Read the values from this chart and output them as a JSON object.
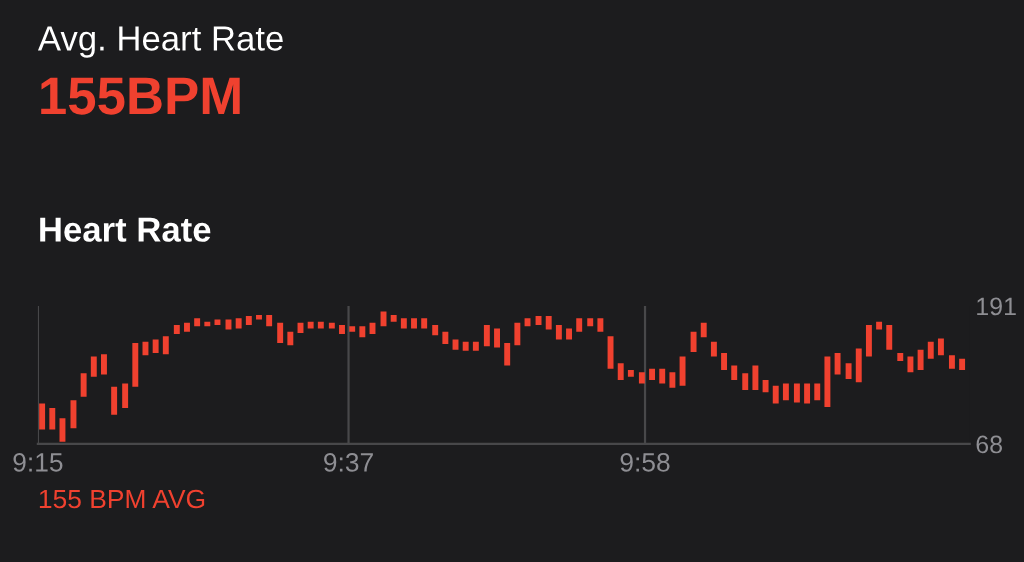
{
  "chart_data": {
    "type": "bar",
    "title": "Avg. Heart Rate",
    "subtitle": "155BPM",
    "annotations": [
      "Heart Rate",
      "155 BPM AVG"
    ],
    "x": [
      9.255,
      9.267,
      9.279,
      9.292,
      9.304,
      9.316,
      9.328,
      9.34,
      9.353,
      9.365,
      9.377,
      9.389,
      9.401,
      9.414,
      9.426,
      9.438,
      9.45,
      9.462,
      9.475,
      9.487,
      9.499,
      9.511,
      9.523,
      9.536,
      9.548,
      9.56,
      9.572,
      9.584,
      9.597,
      9.609,
      9.621,
      9.633,
      9.645,
      9.658,
      9.67,
      9.682,
      9.694,
      9.706,
      9.719,
      9.731,
      9.743,
      9.755,
      9.767,
      9.78,
      9.792,
      9.804,
      9.816,
      9.828,
      9.841,
      9.853,
      9.865,
      9.877,
      9.889,
      9.902,
      9.914,
      9.926,
      9.938,
      9.95,
      9.963,
      9.975,
      9.987,
      9.999,
      10.011,
      10.024,
      10.036,
      10.048,
      10.06,
      10.072,
      10.085,
      10.097,
      10.109,
      10.121,
      10.133,
      10.146,
      10.158,
      10.17,
      10.182,
      10.194,
      10.207,
      10.219,
      10.231,
      10.243,
      10.255,
      10.268,
      10.28,
      10.292,
      10.304,
      10.316,
      10.329,
      10.341
    ],
    "base": [
      81,
      81,
      70,
      82,
      110,
      128,
      130,
      94,
      100,
      119,
      147,
      149,
      148,
      166,
      168,
      173,
      173,
      174,
      170,
      171,
      174,
      179,
      173,
      158,
      156,
      167,
      171,
      171,
      171,
      166,
      168,
      163,
      166,
      173,
      177,
      171,
      171,
      171,
      165,
      157,
      152,
      151,
      151,
      155,
      154,
      138,
      156,
      173,
      174,
      170,
      161,
      161,
      168,
      173,
      168,
      135,
      125,
      128,
      122,
      125,
      122,
      118,
      120,
      150,
      163,
      146,
      134,
      125,
      116,
      116,
      114,
      104,
      107,
      105,
      104,
      107,
      101,
      130,
      126,
      123,
      146,
      170,
      152,
      142,
      132,
      134,
      144,
      147,
      135,
      134
    ],
    "values": [
      23,
      19,
      21,
      25,
      21,
      18,
      18,
      25,
      22,
      39,
      12,
      12,
      16,
      8,
      8,
      7,
      4,
      5,
      9,
      9,
      8,
      4,
      10,
      18,
      12,
      9,
      6,
      6,
      5,
      8,
      5,
      10,
      10,
      13,
      6,
      9,
      9,
      9,
      9,
      11,
      9,
      8,
      8,
      19,
      17,
      20,
      20,
      7,
      8,
      12,
      13,
      10,
      12,
      7,
      12,
      29,
      15,
      6,
      10,
      10,
      13,
      14,
      26,
      18,
      13,
      13,
      15,
      13,
      15,
      22,
      11,
      16,
      15,
      17,
      18,
      15,
      45,
      19,
      14,
      30,
      28,
      7,
      22,
      7,
      14,
      18,
      15,
      15,
      12,
      10
    ],
    "color": "#f0412f",
    "xlim": [
      9.25,
      10.35
    ],
    "xticks": [
      {
        "value": 9.25,
        "label": "9:15"
      },
      {
        "value": 9.6167,
        "label": "9:37"
      },
      {
        "value": 9.9667,
        "label": "9:58"
      }
    ],
    "ylim": [
      68,
      191
    ],
    "yticks": [
      68,
      191
    ],
    "grid": "x"
  }
}
